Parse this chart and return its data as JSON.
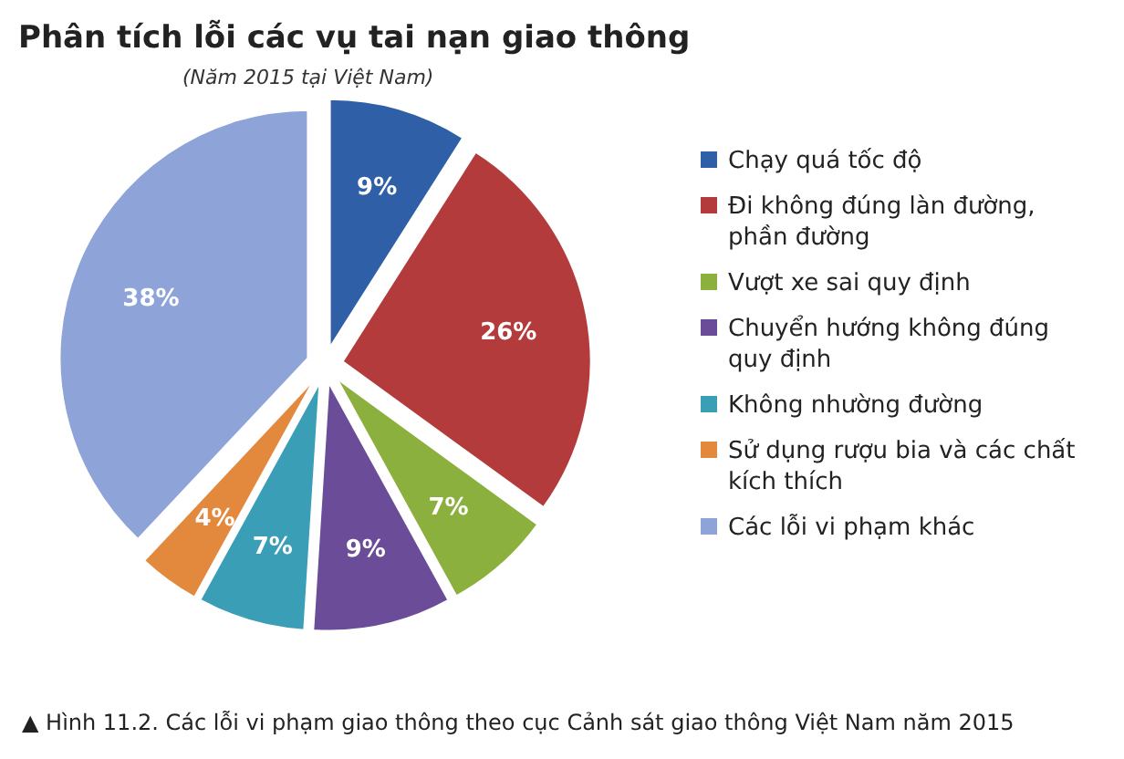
{
  "chart_data": {
    "type": "pie",
    "title": "Phân tích lỗi các vụ tai nạn giao thông",
    "subtitle": "(Năm 2015 tại Việt Nam)",
    "categories": [
      "Chạy quá tốc độ",
      "Đi không đúng làn đường, phần đường",
      "Vượt xe sai quy định",
      "Chuyển hướng không đúng quy định",
      "Không nhường đường",
      "Sử dụng rượu bia và các chất kích thích",
      "Các lỗi vi phạm khác"
    ],
    "values": [
      9,
      26,
      7,
      9,
      7,
      4,
      38
    ],
    "colors": [
      "#2f5fa6",
      "#b33b3b",
      "#8bb03e",
      "#6b4c98",
      "#3a9fb6",
      "#e2893e",
      "#8ea4d8"
    ],
    "value_labels": [
      "9%",
      "26%",
      "7%",
      "9%",
      "7%",
      "4%",
      "38%"
    ],
    "legend": "right",
    "annotations": [
      "▲ Hình 11.2. Các lỗi vi phạm giao thông theo cục Cảnh sát giao thông Việt Nam năm 2015"
    ]
  }
}
